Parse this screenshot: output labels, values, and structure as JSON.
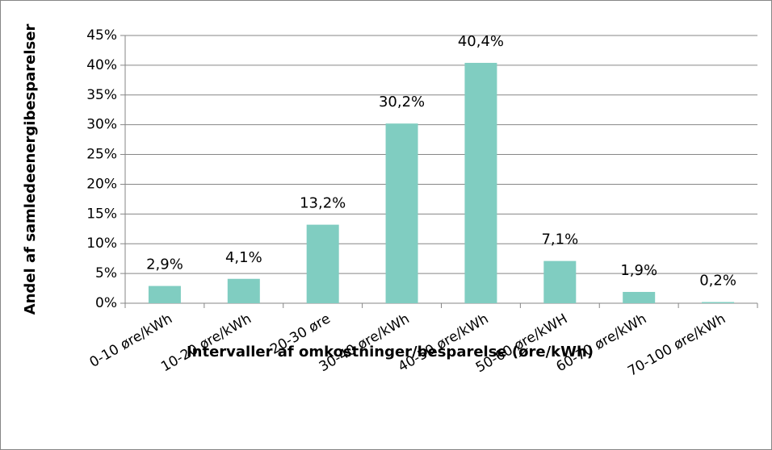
{
  "chart_data": {
    "type": "bar",
    "xlabel": "Intervaller af omkostninger/besparelse (øre/kWh)",
    "ylabel": "Andel af samledeenergibesparelser",
    "categories": [
      "0-10 øre/kWh",
      "10-20 øre/kWh",
      "20-30 øre",
      "30-40 øre/kWh",
      "40-50 øre/kWh",
      "50-60 øre/kWH",
      "60-70 øre/kWh",
      "70-100 øre/kWh"
    ],
    "values": [
      2.9,
      4.1,
      13.2,
      30.2,
      40.4,
      7.1,
      1.9,
      0.2
    ],
    "value_labels": [
      "2,9%",
      "4,1%",
      "13,2%",
      "30,2%",
      "40,4%",
      "7,1%",
      "1,9%",
      "0,2%"
    ],
    "color": "#80cdc1",
    "ylim": [
      0,
      45
    ],
    "yticks": [
      {
        "value": 0,
        "label": "0%"
      },
      {
        "value": 5,
        "label": "5%"
      },
      {
        "value": 10,
        "label": "10%"
      },
      {
        "value": 15,
        "label": "15%"
      },
      {
        "value": 20,
        "label": "20%"
      },
      {
        "value": 25,
        "label": "25%"
      },
      {
        "value": 30,
        "label": "30%"
      },
      {
        "value": 35,
        "label": "35%"
      },
      {
        "value": 40,
        "label": "40%"
      },
      {
        "value": 45,
        "label": "45%"
      }
    ],
    "grid": true
  }
}
